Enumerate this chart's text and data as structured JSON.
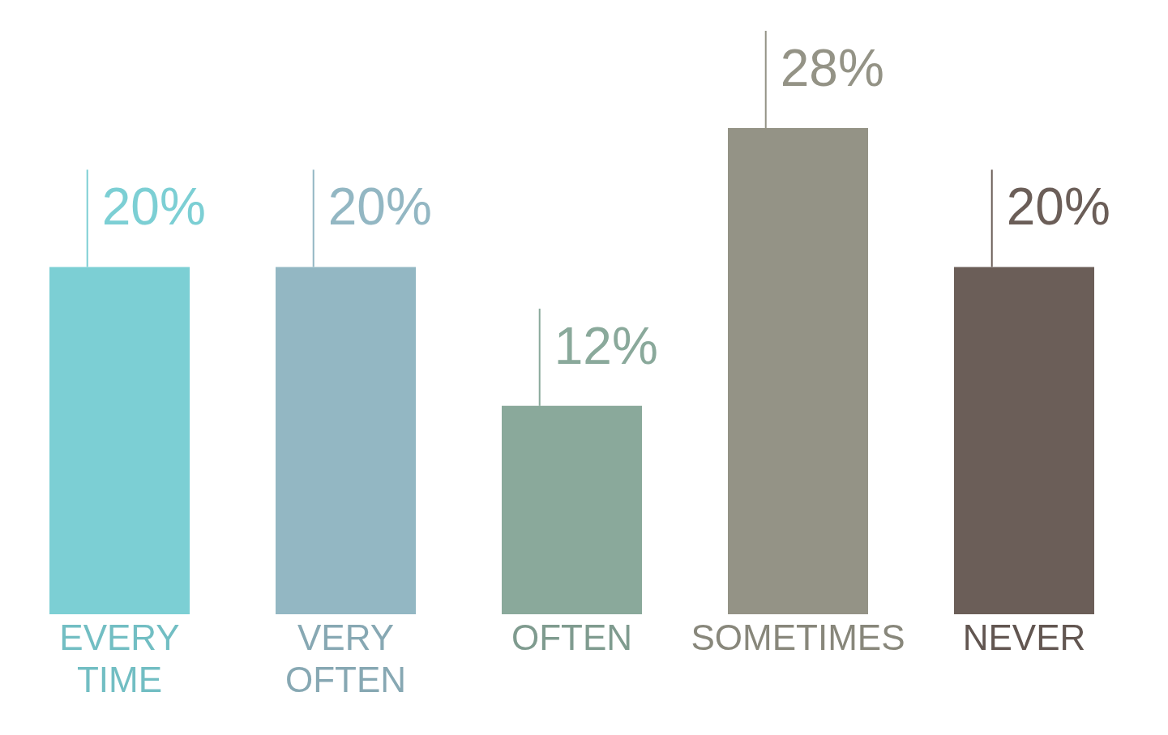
{
  "chart_data": {
    "type": "bar",
    "categories": [
      "EVERY TIME",
      "VERY OFTEN",
      "OFTEN",
      "SOMETIMES",
      "NEVER"
    ],
    "values": [
      20,
      20,
      12,
      28,
      20
    ],
    "value_labels": [
      "20%",
      "20%",
      "12%",
      "28%",
      "20%"
    ],
    "colors": [
      "#7ccfd4",
      "#93b7c3",
      "#8aa99b",
      "#949386",
      "#6b5e58"
    ]
  }
}
